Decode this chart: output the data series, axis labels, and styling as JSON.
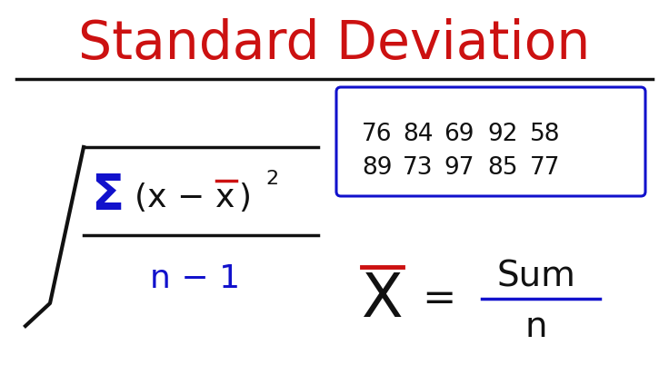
{
  "title": "Standard Deviation",
  "title_color": "#cc1111",
  "bg_color": "#ffffff",
  "blue_color": "#1111cc",
  "red_color": "#cc1111",
  "black_color": "#111111",
  "data_rows": [
    [
      76,
      84,
      69,
      92,
      58
    ],
    [
      89,
      73,
      97,
      85,
      77
    ]
  ],
  "title_fontsize": 42,
  "data_fontsize": 19,
  "formula_fontsize": 26,
  "sigma_fontsize": 38,
  "xbar_big_fontsize": 48,
  "sum_fontsize": 28
}
